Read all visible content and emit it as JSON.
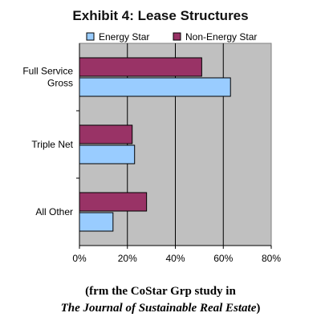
{
  "chart_data": {
    "type": "bar",
    "orientation": "horizontal",
    "title": "Exhibit 4: Lease Structures",
    "categories": [
      "Full Service Gross",
      "Triple Net",
      "All Other"
    ],
    "series": [
      {
        "name": "Energy Star",
        "values": [
          63,
          23,
          14
        ],
        "color": "#99ccff"
      },
      {
        "name": "Non-Energy Star",
        "values": [
          51,
          22,
          28
        ],
        "color": "#993366"
      }
    ],
    "x_ticks": [
      "0%",
      "20%",
      "40%",
      "60%",
      "80%"
    ],
    "xlim": [
      0,
      80
    ],
    "unit": "%",
    "grid": "vertical",
    "legend_position": "top",
    "plot_background": "#c0c0c0"
  },
  "caption": {
    "line1": "(frm the CoStar Grp study in",
    "line2": "The Journal of Sustainable Real Estate",
    "line2_close": ")"
  }
}
